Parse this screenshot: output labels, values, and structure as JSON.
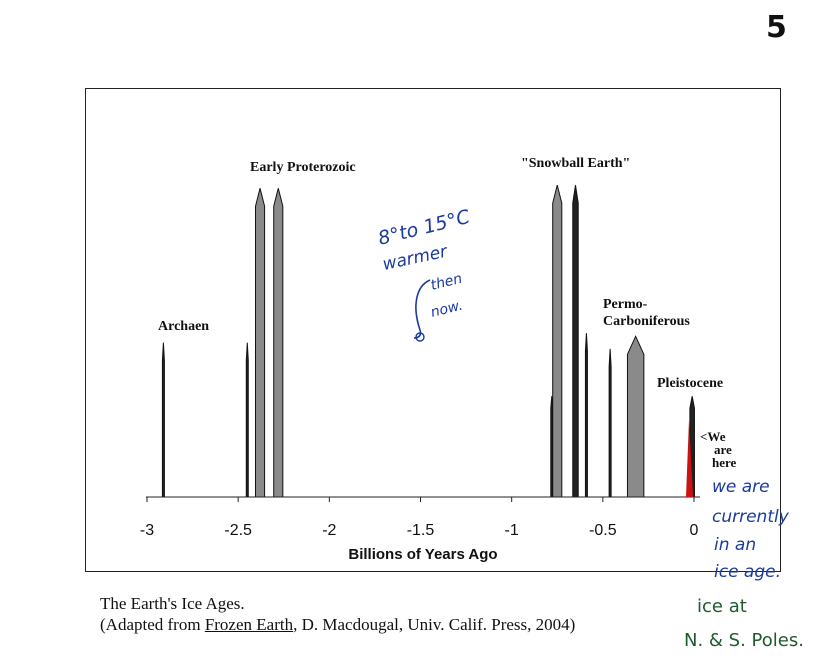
{
  "page_number": "5",
  "chart_data": {
    "type": "area",
    "xlabel": "Billions of Years Ago",
    "ylabel": "",
    "xlim": [
      -3.05,
      0.15
    ],
    "x_ticks": [
      -3,
      -2.5,
      -2,
      -1.5,
      -1,
      -0.5,
      0
    ],
    "x_tick_labels": [
      "-3",
      "-2.5",
      "-2",
      "-1.5",
      "-1",
      "-0.5",
      "0"
    ],
    "grid": false,
    "glaciations": [
      {
        "center": -2.91,
        "width": 0.01,
        "height": 0.49
      },
      {
        "center": -2.45,
        "width": 0.008,
        "height": 0.49
      },
      {
        "center": -2.38,
        "width": 0.05,
        "height": 0.98
      },
      {
        "center": -2.28,
        "width": 0.05,
        "height": 0.98
      },
      {
        "center": -0.78,
        "width": 0.005,
        "height": 0.32
      },
      {
        "center": -0.75,
        "width": 0.05,
        "height": 0.99
      },
      {
        "center": -0.65,
        "width": 0.03,
        "height": 0.99
      },
      {
        "center": -0.59,
        "width": 0.008,
        "height": 0.52
      },
      {
        "center": -0.46,
        "width": 0.008,
        "height": 0.47
      },
      {
        "center": -0.32,
        "width": 0.09,
        "height": 0.51
      },
      {
        "center": -0.01,
        "width": 0.025,
        "height": 0.32
      }
    ],
    "annotations": [
      {
        "text": "Archaen",
        "x": -2.98
      },
      {
        "text": "Early Proterozoic",
        "x": -2.25
      },
      {
        "text": "\"Snowball Earth\"",
        "x": -0.7
      },
      {
        "text": "Permo-",
        "x": -0.38
      },
      {
        "text": "Carboniferous",
        "x": -0.38
      },
      {
        "text": "Pleistocene",
        "x": -0.14
      },
      {
        "text": "<We",
        "x": 0.08
      },
      {
        "text": "are",
        "x": 0.08
      },
      {
        "text": "here",
        "x": 0.08
      }
    ]
  },
  "handwriting": {
    "blue_1": "8°to 15°C",
    "blue_2": "warmer",
    "blue_3": "then",
    "blue_4": "now.",
    "green_1": "we are",
    "green_2": "currently",
    "green_3": "in an",
    "green_4": "ice age.",
    "green_5": "ice at",
    "green_6": "N. & S. Poles."
  },
  "caption": {
    "line1": "The Earth's Ice Ages.",
    "line2_pre": "(Adapted from ",
    "line2_book": "Frozen Earth",
    "line2_post": ", D. Macdougal, Univ. Calif. Press, 2004)"
  }
}
